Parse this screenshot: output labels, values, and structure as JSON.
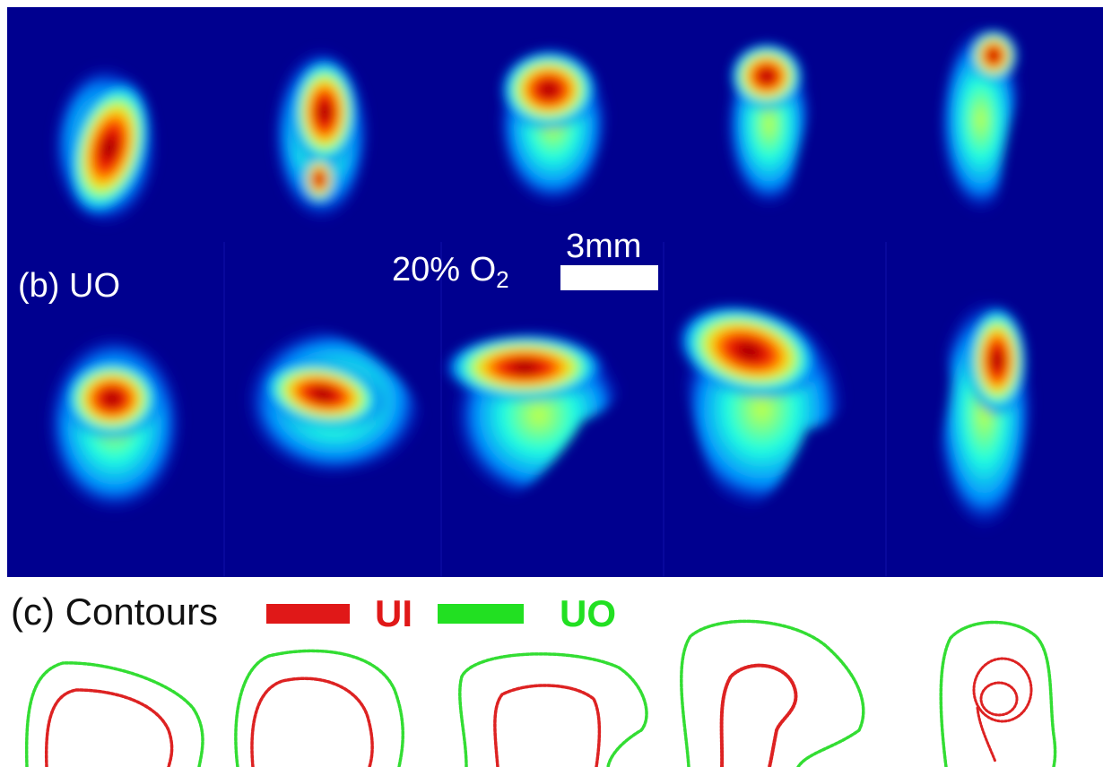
{
  "labels": {
    "panel_b": "(b) UO",
    "oxygen_prefix": "20% O",
    "oxygen_sub": "2",
    "scale_bar": "3mm",
    "panel_c": "(c) Contours"
  },
  "legend": {
    "ui_label": "UI",
    "uo_label": "UO",
    "ui_color": "#e01818",
    "uo_color": "#22e022"
  },
  "colors": {
    "background": "#00008f",
    "colormap": "jet"
  }
}
